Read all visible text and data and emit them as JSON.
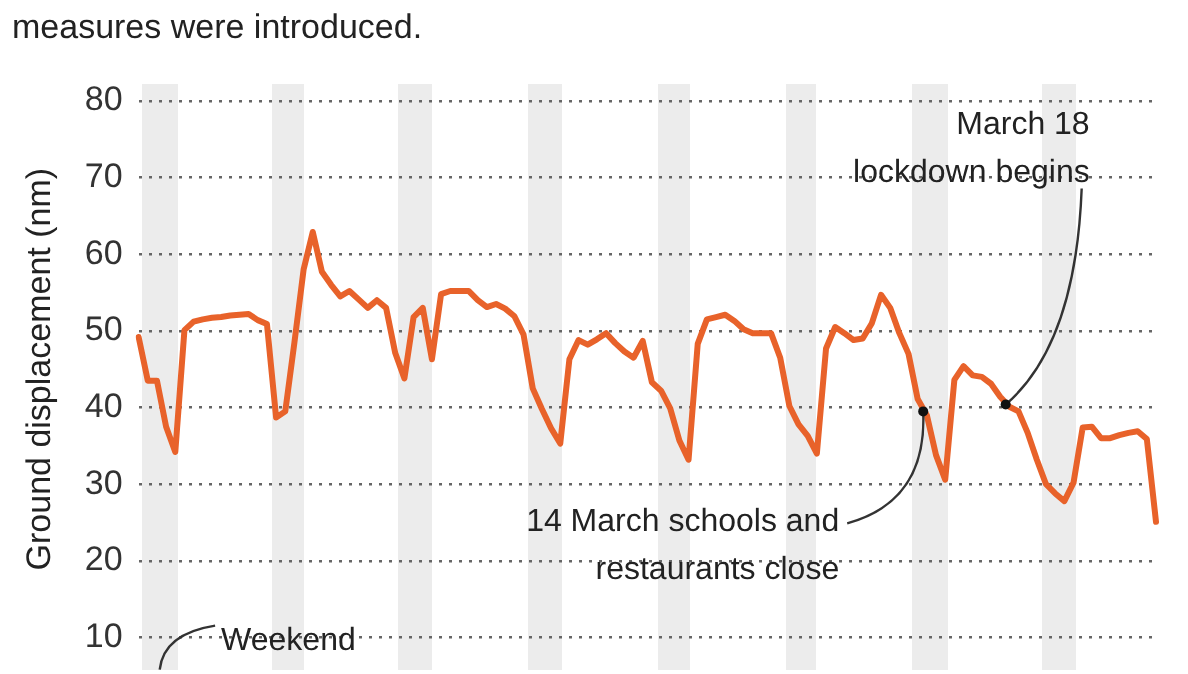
{
  "chart_data": {
    "type": "line",
    "subtitle": "measures were introduced.",
    "ylabel": "Ground displacement (nm)",
    "categories": [
      null,
      null,
      null,
      null,
      null,
      null,
      null,
      null,
      null,
      null,
      null,
      null,
      null,
      null,
      null,
      null,
      null,
      null,
      null,
      null,
      null,
      null,
      null,
      null,
      null,
      null,
      null,
      null,
      null,
      null,
      null,
      null,
      null,
      null,
      null,
      null,
      null,
      null,
      null,
      null,
      null,
      null,
      null,
      null,
      null,
      null,
      null,
      null,
      null,
      null,
      null,
      null,
      null,
      null,
      null,
      null,
      null,
      null,
      null,
      null,
      null,
      null,
      null,
      null,
      null,
      null,
      null,
      null,
      null,
      null,
      null,
      null,
      null,
      null,
      null,
      null,
      null,
      null,
      null,
      null,
      null,
      null,
      null,
      null,
      null,
      null,
      null,
      null,
      null,
      null,
      null,
      null,
      null,
      null,
      null,
      null,
      null,
      null,
      null,
      null,
      null,
      null,
      null,
      null,
      null,
      null,
      null,
      null,
      null,
      null,
      null,
      null
    ],
    "values": [
      49.2,
      43.5,
      43.5,
      37.5,
      34.2,
      50.1,
      51.2,
      51.5,
      51.7,
      51.8,
      52,
      52.1,
      52.2,
      51.4,
      50.9,
      38.7,
      39.5,
      48.5,
      58,
      62.9,
      57.7,
      56,
      54.5,
      55.2,
      54.1,
      53,
      54,
      53,
      47.1,
      43.8,
      51.8,
      53,
      46.3,
      54.8,
      55.2,
      55.2,
      55.2,
      54,
      53.1,
      53.5,
      52.9,
      51.9,
      49.5,
      42.5,
      39.8,
      37.3,
      35.3,
      46.3,
      48.8,
      48.2,
      48.9,
      49.7,
      48.4,
      47.3,
      46.5,
      48.7,
      43.3,
      42.2,
      39.9,
      35.7,
      33.2,
      48.3,
      51.5,
      51.8,
      52.1,
      51.3,
      50.2,
      49.7,
      49.7,
      49.7,
      46.5,
      40.2,
      37.8,
      36.3,
      34,
      47.7,
      50.5,
      49.7,
      48.8,
      49,
      51,
      54.7,
      53,
      49.7,
      47,
      41.1,
      39,
      33.8,
      30.6,
      43.6,
      45.4,
      44.2,
      44,
      43.1,
      41.4,
      40.1,
      39.5,
      36.7,
      33.2,
      30,
      28.8,
      27.8,
      30.2,
      37.4,
      37.5,
      36,
      36,
      36.4,
      36.7,
      36.9,
      35.9,
      25.1
    ],
    "color": "#e8622a",
    "ylim": [
      10,
      80
    ],
    "yticks": [
      10,
      20,
      30,
      40,
      50,
      60,
      70,
      80
    ],
    "grid": "y",
    "tick_labels": "y",
    "annotations": [
      "Weekend",
      "March 18\nlockdown begins",
      "14 March schools and\nrestaurants close"
    ]
  }
}
